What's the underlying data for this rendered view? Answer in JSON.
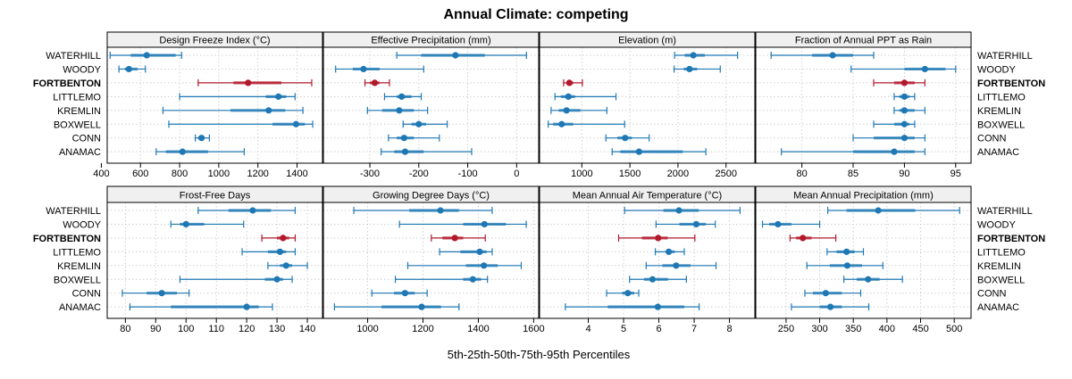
{
  "chart_data": {
    "type": "interval-dotplot",
    "title": "Annual Climate: competing",
    "xlabel": "5th-25th-50th-75th-95th Percentiles",
    "ylabel": "",
    "layout": "4 columns x 2 rows of panels, shared row labels on left and right",
    "grid": true,
    "categories": [
      "WATERHILL",
      "WOODY",
      "FORTBENTON",
      "LITTLEMO",
      "KREMLIN",
      "BOXWELL",
      "CONN",
      "ANAMAC"
    ],
    "highlight_category": "FORTBENTON",
    "colors": {
      "default": "#1f78b4",
      "highlight": "#b2182b",
      "strip_bg": "#f0f0f0",
      "grid": "#cfcfcf"
    },
    "value_order": [
      "p5",
      "p25",
      "p50",
      "p75",
      "p95"
    ],
    "panels": [
      {
        "title": "Design Freeze Index (°C)",
        "xlim": [
          430,
          1530
        ],
        "ticks": [
          400,
          600,
          800,
          1000,
          1200,
          1400
        ],
        "rows": [
          [
            445,
            550,
            632,
            780,
            810
          ],
          [
            490,
            520,
            541,
            585,
            625
          ],
          [
            895,
            1075,
            1150,
            1320,
            1475
          ],
          [
            800,
            1240,
            1305,
            1345,
            1390
          ],
          [
            715,
            1060,
            1255,
            1340,
            1430
          ],
          [
            745,
            1275,
            1395,
            1440,
            1480
          ],
          [
            880,
            895,
            912,
            925,
            952
          ],
          [
            680,
            730,
            815,
            945,
            1130
          ]
        ]
      },
      {
        "title": "Effective Precipitation (mm)",
        "xlim": [
          -395,
          45
        ],
        "ticks": [
          -300,
          -200,
          -100,
          0
        ],
        "rows": [
          [
            -245,
            -195,
            -125,
            -65,
            20
          ],
          [
            -370,
            -335,
            -313,
            -280,
            -190
          ],
          [
            -310,
            -300,
            -290,
            -280,
            -260
          ],
          [
            -270,
            -245,
            -235,
            -215,
            -195
          ],
          [
            -305,
            -275,
            -240,
            -210,
            -182
          ],
          [
            -232,
            -215,
            -200,
            -185,
            -142
          ],
          [
            -262,
            -245,
            -230,
            -210,
            -158
          ],
          [
            -277,
            -250,
            -228,
            -190,
            -92
          ]
        ]
      },
      {
        "title": "Elevation (m)",
        "xlim": [
          560,
          2800
        ],
        "ticks": [
          1000,
          1500,
          2000,
          2500
        ],
        "rows": [
          [
            1965,
            2070,
            2160,
            2280,
            2620
          ],
          [
            1960,
            2060,
            2120,
            2200,
            2440
          ],
          [
            810,
            840,
            870,
            910,
            1005
          ],
          [
            720,
            780,
            860,
            930,
            1355
          ],
          [
            680,
            760,
            840,
            985,
            1260
          ],
          [
            650,
            700,
            790,
            910,
            1445
          ],
          [
            1250,
            1370,
            1450,
            1520,
            1700
          ],
          [
            1315,
            1400,
            1595,
            2050,
            2290
          ]
        ]
      },
      {
        "title": "Fraction of Annual PPT as Rain",
        "xlim": [
          75.5,
          96.5
        ],
        "ticks": [
          80,
          85,
          90,
          95
        ],
        "rows": [
          [
            77,
            81,
            83,
            85,
            87
          ],
          [
            84.8,
            90,
            92,
            94,
            95
          ],
          [
            87,
            89,
            90,
            91,
            92
          ],
          [
            89,
            89.5,
            90,
            90.5,
            91
          ],
          [
            89,
            89.5,
            90,
            91,
            92
          ],
          [
            87,
            89,
            90,
            90.5,
            91
          ],
          [
            85,
            87,
            90,
            91,
            92
          ],
          [
            78,
            85,
            89,
            91,
            92
          ]
        ]
      },
      {
        "title": "Frost-Free Days",
        "xlim": [
          74,
          145
        ],
        "ticks": [
          80,
          90,
          100,
          110,
          120,
          130,
          140
        ],
        "rows": [
          [
            104,
            114,
            122,
            128,
            136
          ],
          [
            95,
            98,
            100,
            106,
            119
          ],
          [
            125,
            130,
            132,
            134,
            136
          ],
          [
            118.5,
            127,
            131,
            133,
            136
          ],
          [
            127,
            131,
            133,
            135,
            140
          ],
          [
            98,
            126,
            130,
            132,
            135
          ],
          [
            79,
            87,
            92,
            97,
            101
          ],
          [
            81.5,
            95,
            120,
            124,
            128.5
          ]
        ]
      },
      {
        "title": "Growing Degree Days (°C)",
        "xlim": [
          840,
          1618
        ],
        "ticks": [
          1000,
          1200,
          1400,
          1600
        ],
        "rows": [
          [
            950,
            1150,
            1263,
            1330,
            1450
          ],
          [
            1115,
            1345,
            1422,
            1500,
            1573
          ],
          [
            1230,
            1270,
            1315,
            1345,
            1425
          ],
          [
            1260,
            1335,
            1405,
            1430,
            1450
          ],
          [
            1145,
            1355,
            1420,
            1470,
            1555
          ],
          [
            1100,
            1345,
            1380,
            1410,
            1433
          ],
          [
            1015,
            1095,
            1135,
            1170,
            1215
          ],
          [
            880,
            1050,
            1195,
            1265,
            1330
          ]
        ]
      },
      {
        "title": "Mean Annual Air Temperature (°C)",
        "xlim": [
          2.62,
          8.72
        ],
        "ticks": [
          4,
          5,
          6,
          7,
          8
        ],
        "rows": [
          [
            5.03,
            6.13,
            6.57,
            7.13,
            8.3
          ],
          [
            5.92,
            6.58,
            7.06,
            7.33,
            7.6
          ],
          [
            4.86,
            5.52,
            5.98,
            6.25,
            7.02
          ],
          [
            5.9,
            6.2,
            6.28,
            6.45,
            6.72
          ],
          [
            5.64,
            6.1,
            6.49,
            6.9,
            7.62
          ],
          [
            5.17,
            5.58,
            5.82,
            6.26,
            6.78
          ],
          [
            4.52,
            4.96,
            5.12,
            5.3,
            5.43
          ],
          [
            3.35,
            4.55,
            5.97,
            6.72,
            7.14
          ]
        ]
      },
      {
        "title": "Mean Annual Precipitation (mm)",
        "xlim": [
          205,
          525
        ],
        "ticks": [
          250,
          300,
          350,
          400,
          450,
          500
        ],
        "rows": [
          [
            312,
            340,
            387,
            442,
            508
          ],
          [
            215,
            225,
            238,
            258,
            300
          ],
          [
            256,
            265,
            275,
            288,
            324
          ],
          [
            311,
            325,
            340,
            352,
            365
          ],
          [
            281,
            315,
            341,
            363,
            394
          ],
          [
            336,
            355,
            372,
            389,
            423
          ],
          [
            278,
            290,
            309,
            333,
            361
          ],
          [
            258,
            300,
            316,
            333,
            373
          ]
        ]
      }
    ]
  }
}
